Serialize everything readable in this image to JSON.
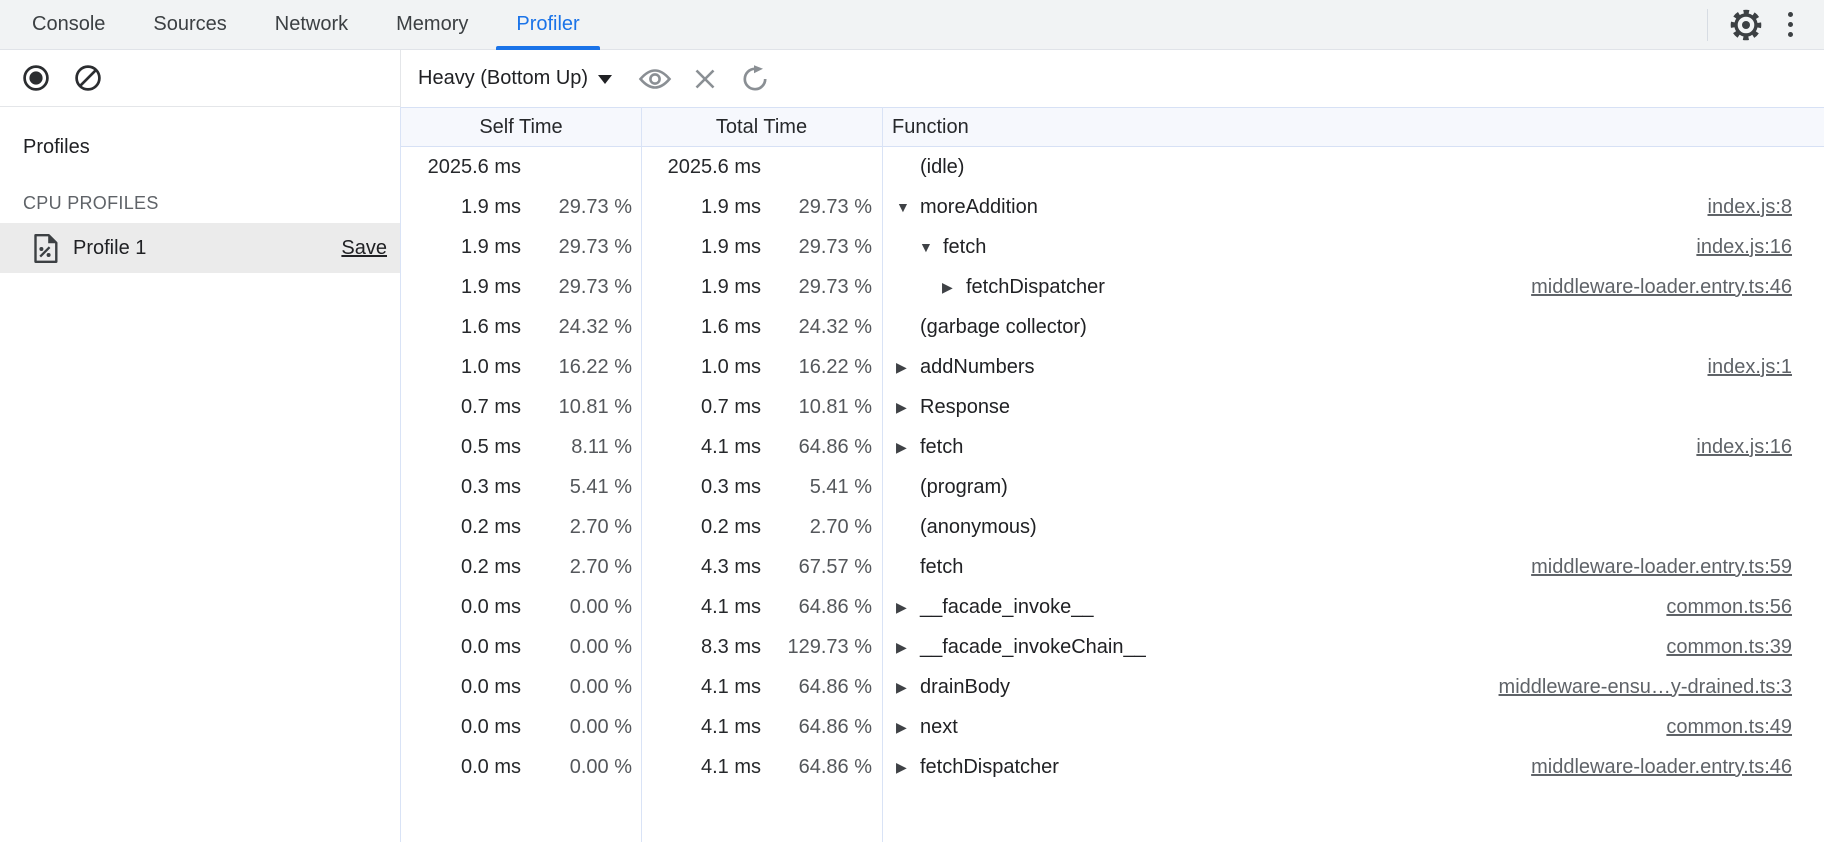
{
  "tabbar": {
    "tabs": [
      {
        "label": "Console",
        "active": false
      },
      {
        "label": "Sources",
        "active": false
      },
      {
        "label": "Network",
        "active": false
      },
      {
        "label": "Memory",
        "active": false
      },
      {
        "label": "Profiler",
        "active": true
      }
    ],
    "icons": [
      "settings-gear-icon",
      "more-vertical-icon"
    ]
  },
  "toolbar": {
    "record_icon": "record-icon",
    "clear_icon": "clear-icon",
    "dropdown_label": "Heavy (Bottom Up)",
    "icons": [
      "visibility-eye-icon",
      "close-x-icon",
      "refresh-icon"
    ]
  },
  "sidebar": {
    "profiles_label": "Profiles",
    "section_label": "CPU PROFILES",
    "profile": {
      "icon": "profile-document-icon",
      "name": "Profile 1",
      "save_label": "Save",
      "selected": true
    }
  },
  "grid": {
    "columns": {
      "self": "Self Time",
      "total": "Total Time",
      "function": "Function"
    },
    "rows": [
      {
        "self_ms": "2025.6 ms",
        "self_pct": "",
        "total_ms": "2025.6 ms",
        "total_pct": "",
        "fn": "(idle)",
        "level": 0,
        "arrow": "none",
        "link": ""
      },
      {
        "self_ms": "1.9 ms",
        "self_pct": "29.73 %",
        "total_ms": "1.9 ms",
        "total_pct": "29.73 %",
        "fn": "moreAddition",
        "level": 0,
        "arrow": "expanded",
        "link": "index.js:8"
      },
      {
        "self_ms": "1.9 ms",
        "self_pct": "29.73 %",
        "total_ms": "1.9 ms",
        "total_pct": "29.73 %",
        "fn": "fetch",
        "level": 1,
        "arrow": "expanded",
        "link": "index.js:16"
      },
      {
        "self_ms": "1.9 ms",
        "self_pct": "29.73 %",
        "total_ms": "1.9 ms",
        "total_pct": "29.73 %",
        "fn": "fetchDispatcher",
        "level": 2,
        "arrow": "collapsed",
        "link": "middleware-loader.entry.ts:46"
      },
      {
        "self_ms": "1.6 ms",
        "self_pct": "24.32 %",
        "total_ms": "1.6 ms",
        "total_pct": "24.32 %",
        "fn": "(garbage collector)",
        "level": 0,
        "arrow": "none",
        "link": ""
      },
      {
        "self_ms": "1.0 ms",
        "self_pct": "16.22 %",
        "total_ms": "1.0 ms",
        "total_pct": "16.22 %",
        "fn": "addNumbers",
        "level": 0,
        "arrow": "collapsed",
        "link": "index.js:1"
      },
      {
        "self_ms": "0.7 ms",
        "self_pct": "10.81 %",
        "total_ms": "0.7 ms",
        "total_pct": "10.81 %",
        "fn": "Response",
        "level": 0,
        "arrow": "collapsed",
        "link": ""
      },
      {
        "self_ms": "0.5 ms",
        "self_pct": "8.11 %",
        "total_ms": "4.1 ms",
        "total_pct": "64.86 %",
        "fn": "fetch",
        "level": 0,
        "arrow": "collapsed",
        "link": "index.js:16"
      },
      {
        "self_ms": "0.3 ms",
        "self_pct": "5.41 %",
        "total_ms": "0.3 ms",
        "total_pct": "5.41 %",
        "fn": "(program)",
        "level": 0,
        "arrow": "none",
        "link": ""
      },
      {
        "self_ms": "0.2 ms",
        "self_pct": "2.70 %",
        "total_ms": "0.2 ms",
        "total_pct": "2.70 %",
        "fn": "(anonymous)",
        "level": 0,
        "arrow": "none",
        "link": ""
      },
      {
        "self_ms": "0.2 ms",
        "self_pct": "2.70 %",
        "total_ms": "4.3 ms",
        "total_pct": "67.57 %",
        "fn": "fetch",
        "level": 0,
        "arrow": "none",
        "link": "middleware-loader.entry.ts:59"
      },
      {
        "self_ms": "0.0 ms",
        "self_pct": "0.00 %",
        "total_ms": "4.1 ms",
        "total_pct": "64.86 %",
        "fn": "__facade_invoke__",
        "level": 0,
        "arrow": "collapsed",
        "link": "common.ts:56"
      },
      {
        "self_ms": "0.0 ms",
        "self_pct": "0.00 %",
        "total_ms": "8.3 ms",
        "total_pct": "129.73 %",
        "fn": "__facade_invokeChain__",
        "level": 0,
        "arrow": "collapsed",
        "link": "common.ts:39"
      },
      {
        "self_ms": "0.0 ms",
        "self_pct": "0.00 %",
        "total_ms": "4.1 ms",
        "total_pct": "64.86 %",
        "fn": "drainBody",
        "level": 0,
        "arrow": "collapsed",
        "link": "middleware-ensu…y-drained.ts:3"
      },
      {
        "self_ms": "0.0 ms",
        "self_pct": "0.00 %",
        "total_ms": "4.1 ms",
        "total_pct": "64.86 %",
        "fn": "next",
        "level": 0,
        "arrow": "collapsed",
        "link": "common.ts:49"
      },
      {
        "self_ms": "0.0 ms",
        "self_pct": "0.00 %",
        "total_ms": "4.1 ms",
        "total_pct": "64.86 %",
        "fn": "fetchDispatcher",
        "level": 0,
        "arrow": "collapsed",
        "link": "middleware-loader.entry.ts:46"
      }
    ],
    "arrow_glyphs": {
      "expanded": "▼",
      "collapsed": "▶",
      "none": ""
    }
  },
  "colors": {
    "accent": "#1a73e8",
    "tabbar_bg": "#f1f3f4",
    "grid_header_bg": "#f6f8fd",
    "grid_border": "#d7e1f5",
    "selected_row_bg": "#ebebeb",
    "text": "#202124",
    "muted": "#5f6368"
  }
}
